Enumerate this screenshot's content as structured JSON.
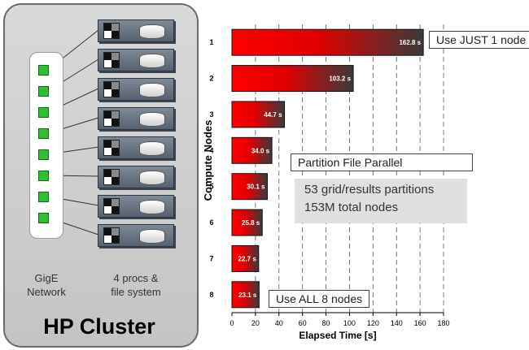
{
  "cluster": {
    "title": "HP Cluster",
    "network_label_line1": "GigE",
    "network_label_line2": "Network",
    "procs_label_line1": "4 procs &",
    "procs_label_line2": "file system",
    "node_count": 8,
    "port_color": "#2ec02e"
  },
  "callouts": {
    "one_node": "Use JUST 1 node",
    "all_nodes": "Use ALL 8 nodes",
    "partition": "Partition File Parallel",
    "info_line1": "53 grid/results partitions",
    "info_line2": "153M total nodes"
  },
  "chart_data": {
    "type": "bar",
    "orientation": "horizontal",
    "categories": [
      "1",
      "2",
      "3",
      "4",
      "5",
      "6",
      "7",
      "8"
    ],
    "values": [
      162.8,
      103.2,
      44.7,
      34.0,
      30.1,
      25.8,
      22.7,
      23.1
    ],
    "value_labels": [
      "162.8 s",
      "103.2 s",
      "44.7 s",
      "34.0 s",
      "30.1 s",
      "25.8 s",
      "22.7 s",
      "23.1 s"
    ],
    "xlabel": "Elapsed Time [s]",
    "ylabel": "Compute Nodes",
    "xlim": [
      0,
      180
    ],
    "xticks": [
      0,
      20,
      40,
      60,
      80,
      100,
      120,
      140,
      160,
      180
    ],
    "grid": "vertical dashed",
    "bar_color_start": "#ff0000",
    "bar_color_end": "#3a3a3a"
  }
}
